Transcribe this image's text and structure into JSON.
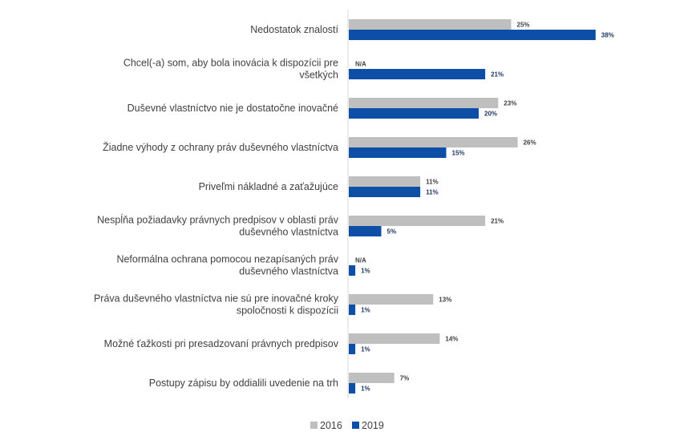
{
  "chart_data": {
    "type": "bar",
    "orientation": "horizontal",
    "title": "",
    "xlabel": "",
    "ylabel": "",
    "xlim": [
      0,
      50
    ],
    "grid": false,
    "legend_position": "bottom-center",
    "categories": [
      [
        "Nedostatok znalostí"
      ],
      [
        "Chcel(-a) som, aby bola inovácia k dispozícii pre",
        "všetkých"
      ],
      [
        "Duševné vlastníctvo nie je dostatočne inovačné"
      ],
      [
        "Žiadne výhody z ochrany práv duševného vlastníctva"
      ],
      [
        "Priveľmi nákladné a zaťažujúce"
      ],
      [
        "Nespĺňa požiadavky právnych predpisov v oblasti práv",
        "duševného vlastníctva"
      ],
      [
        "Neformálna ochrana pomocou nezapísaných práv",
        "duševného vlastníctva"
      ],
      [
        "Práva duševného vlastníctva nie sú pre inovačné kroky",
        "spoločnosti k dispozícii"
      ],
      [
        "Možné ťažkosti pri presadzovaní právnych predpisov"
      ],
      [
        "Postupy zápisu by oddialili uvedenie na trh"
      ]
    ],
    "series": [
      {
        "name": "2016",
        "color": "#bfbfbf",
        "label_color": "#404040",
        "values": [
          25,
          null,
          23,
          26,
          11,
          21,
          null,
          13,
          14,
          7
        ],
        "labels": [
          "25%",
          "N/A",
          "23%",
          "26%",
          "11%",
          "21%",
          "N/A",
          "13%",
          "14%",
          "7%"
        ]
      },
      {
        "name": "2019",
        "color": "#0d4ea6",
        "label_color": "#1f3864",
        "values": [
          38,
          21,
          20,
          15,
          11,
          5,
          1,
          1,
          1,
          1
        ],
        "labels": [
          "38%",
          "21%",
          "20%",
          "15%",
          "11%",
          "5%",
          "1%",
          "1%",
          "1%",
          "1%"
        ]
      }
    ]
  }
}
